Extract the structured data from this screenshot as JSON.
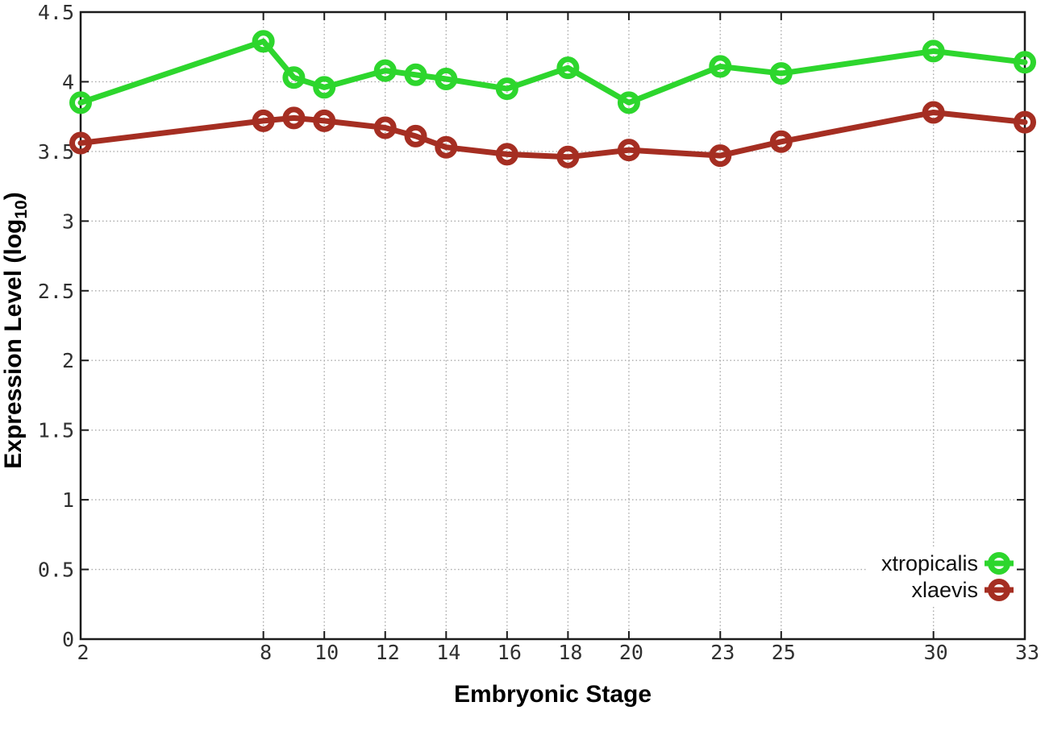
{
  "chart_data": {
    "type": "line",
    "title": "",
    "xlabel": "Embryonic Stage",
    "ylabel": "Expression Level (log10)",
    "ylabel_parts": {
      "main": "Expression Level (log",
      "sub": "10",
      "close": ")"
    },
    "x": [
      2,
      8,
      9,
      10,
      12,
      13,
      14,
      16,
      18,
      20,
      23,
      25,
      30,
      33
    ],
    "x_tick_values": [
      2,
      8,
      10,
      12,
      14,
      16,
      18,
      20,
      23,
      25,
      30,
      33
    ],
    "x_tick_labels": [
      "2",
      "8",
      "10",
      "12",
      "14",
      "16",
      "18",
      "20",
      "23",
      "25",
      "30",
      "33"
    ],
    "y_tick_values": [
      0,
      0.5,
      1,
      1.5,
      2,
      2.5,
      3,
      3.5,
      4,
      4.5
    ],
    "y_tick_labels": [
      "0",
      "0.5",
      "1",
      "1.5",
      "2",
      "2.5",
      "3",
      "3.5",
      "4",
      "4.5"
    ],
    "xlim": [
      2,
      33
    ],
    "ylim": [
      0,
      4.5
    ],
    "grid": true,
    "legend_position": "bottom-right",
    "series": [
      {
        "name": "xtropicalis",
        "color": "#2dd62d",
        "values": [
          3.85,
          4.29,
          4.03,
          3.96,
          4.08,
          4.05,
          4.02,
          3.95,
          4.1,
          3.85,
          4.11,
          4.06,
          4.22,
          4.14
        ]
      },
      {
        "name": "xlaevis",
        "color": "#a52e22",
        "values": [
          3.56,
          3.72,
          3.74,
          3.72,
          3.67,
          3.61,
          3.53,
          3.48,
          3.46,
          3.51,
          3.47,
          3.57,
          3.78,
          3.71
        ]
      }
    ]
  },
  "style_colors": {
    "border": "#1c1c1c",
    "tick_label": "#303030",
    "grid": "#aaaaaa",
    "legend_text": "#111111",
    "background": "#ffffff"
  }
}
